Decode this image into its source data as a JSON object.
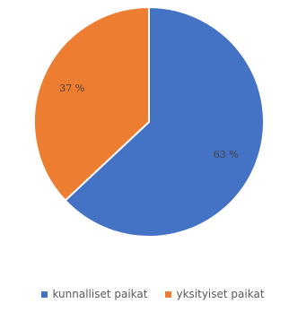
{
  "chart_data": {
    "type": "pie",
    "title": "",
    "start_angle_deg": 0,
    "direction": "clockwise",
    "slices": [
      {
        "label": "kunnalliset paikat",
        "value": 63,
        "value_label": "63 %",
        "color": "#4472C4"
      },
      {
        "label": "yksityiset paikat",
        "value": 37,
        "value_label": "37 %",
        "color": "#ED7D31"
      }
    ],
    "legend": {
      "position": "bottom",
      "items": [
        {
          "label": "kunnalliset paikat",
          "color": "#4472C4"
        },
        {
          "label": "yksityiset paikat",
          "color": "#ED7D31"
        }
      ]
    }
  }
}
